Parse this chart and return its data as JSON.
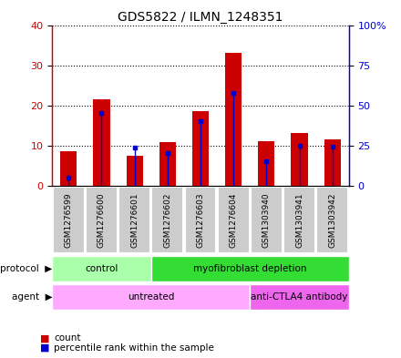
{
  "title": "GDS5822 / ILMN_1248351",
  "samples": [
    "GSM1276599",
    "GSM1276600",
    "GSM1276601",
    "GSM1276602",
    "GSM1276603",
    "GSM1276604",
    "GSM1303940",
    "GSM1303941",
    "GSM1303942"
  ],
  "count_values": [
    8.5,
    21.5,
    7.5,
    10.8,
    18.5,
    33.0,
    11.0,
    13.0,
    11.5
  ],
  "percentile_values": [
    5.0,
    45.0,
    23.5,
    20.0,
    40.0,
    57.5,
    15.0,
    25.0,
    24.0
  ],
  "count_color": "#CC0000",
  "percentile_color": "#0000CC",
  "left_ylim": [
    0,
    40
  ],
  "right_ylim": [
    0,
    100
  ],
  "left_yticks": [
    0,
    10,
    20,
    30,
    40
  ],
  "right_yticks": [
    0,
    25,
    50,
    75,
    100
  ],
  "right_yticklabels": [
    "0",
    "25",
    "50",
    "75",
    "100%"
  ],
  "protocol_groups": [
    {
      "label": "control",
      "start": 0,
      "end": 3,
      "color": "#AAFFAA"
    },
    {
      "label": "myofibroblast depletion",
      "start": 3,
      "end": 9,
      "color": "#33DD33"
    }
  ],
  "agent_groups": [
    {
      "label": "untreated",
      "start": 0,
      "end": 6,
      "color": "#FFAAFF"
    },
    {
      "label": "anti-CTLA4 antibody",
      "start": 6,
      "end": 9,
      "color": "#EE66EE"
    }
  ],
  "legend_count_label": "count",
  "legend_percentile_label": "percentile rank within the sample",
  "bar_width": 0.5,
  "grid_color": "black",
  "sample_bg_color": "#CCCCCC",
  "plot_bg_color": "#FFFFFF"
}
